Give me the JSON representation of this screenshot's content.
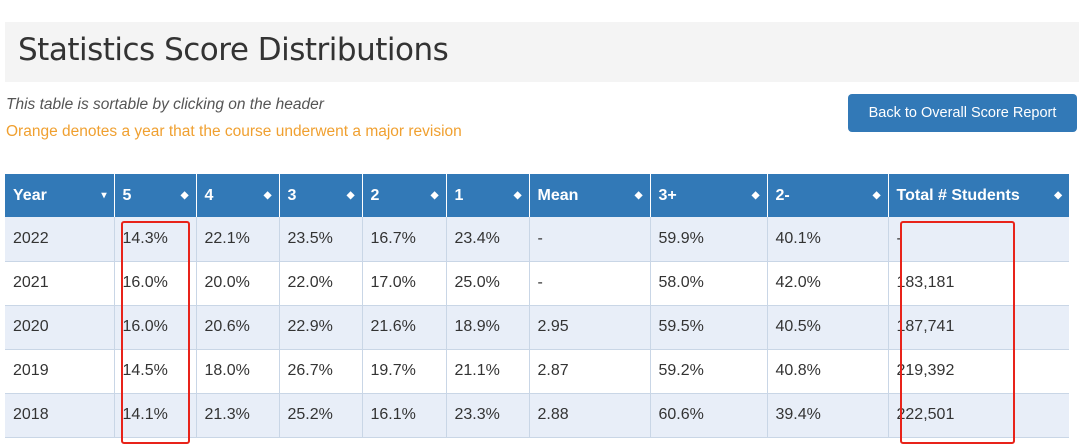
{
  "page": {
    "title": "Statistics Score Distributions",
    "note_sortable": "This table is sortable by clicking on the header",
    "note_revision": "Orange denotes a year that the course underwent a major revision",
    "back_button_label": "Back to Overall Score Report"
  },
  "colors": {
    "header_bg": "#3279b7",
    "button_bg": "#3279b7",
    "revision_note": "#f0a030",
    "row_stripe": "#e8eef8",
    "highlight_border": "#e8231a"
  },
  "table": {
    "columns": [
      {
        "label": "Year",
        "sort_icon": "caret-down-icon",
        "sort_glyph": "▾"
      },
      {
        "label": "5",
        "sort_icon": "sort-icon",
        "sort_glyph": "◆"
      },
      {
        "label": "4",
        "sort_icon": "sort-icon",
        "sort_glyph": "◆"
      },
      {
        "label": "3",
        "sort_icon": "sort-icon",
        "sort_glyph": "◆"
      },
      {
        "label": "2",
        "sort_icon": "sort-icon",
        "sort_glyph": "◆"
      },
      {
        "label": "1",
        "sort_icon": "sort-icon",
        "sort_glyph": "◆"
      },
      {
        "label": "Mean",
        "sort_icon": "sort-icon",
        "sort_glyph": "◆"
      },
      {
        "label": "3+",
        "sort_icon": "sort-icon",
        "sort_glyph": "◆"
      },
      {
        "label": "2-",
        "sort_icon": "sort-icon",
        "sort_glyph": "◆"
      },
      {
        "label": "Total # Students",
        "sort_icon": "sort-icon",
        "sort_glyph": "◆"
      }
    ],
    "rows": [
      [
        "2022",
        "14.3%",
        "22.1%",
        "23.5%",
        "16.7%",
        "23.4%",
        "-",
        "59.9%",
        "40.1%",
        "-"
      ],
      [
        "2021",
        "16.0%",
        "20.0%",
        "22.0%",
        "17.0%",
        "25.0%",
        "-",
        "58.0%",
        "42.0%",
        "183,181"
      ],
      [
        "2020",
        "16.0%",
        "20.6%",
        "22.9%",
        "21.6%",
        "18.9%",
        "2.95",
        "59.5%",
        "40.5%",
        "187,741"
      ],
      [
        "2019",
        "14.5%",
        "18.0%",
        "26.7%",
        "19.7%",
        "21.1%",
        "2.87",
        "59.2%",
        "40.8%",
        "219,392"
      ],
      [
        "2018",
        "14.1%",
        "21.3%",
        "25.2%",
        "16.1%",
        "23.3%",
        "2.88",
        "60.6%",
        "39.4%",
        "222,501"
      ]
    ]
  }
}
